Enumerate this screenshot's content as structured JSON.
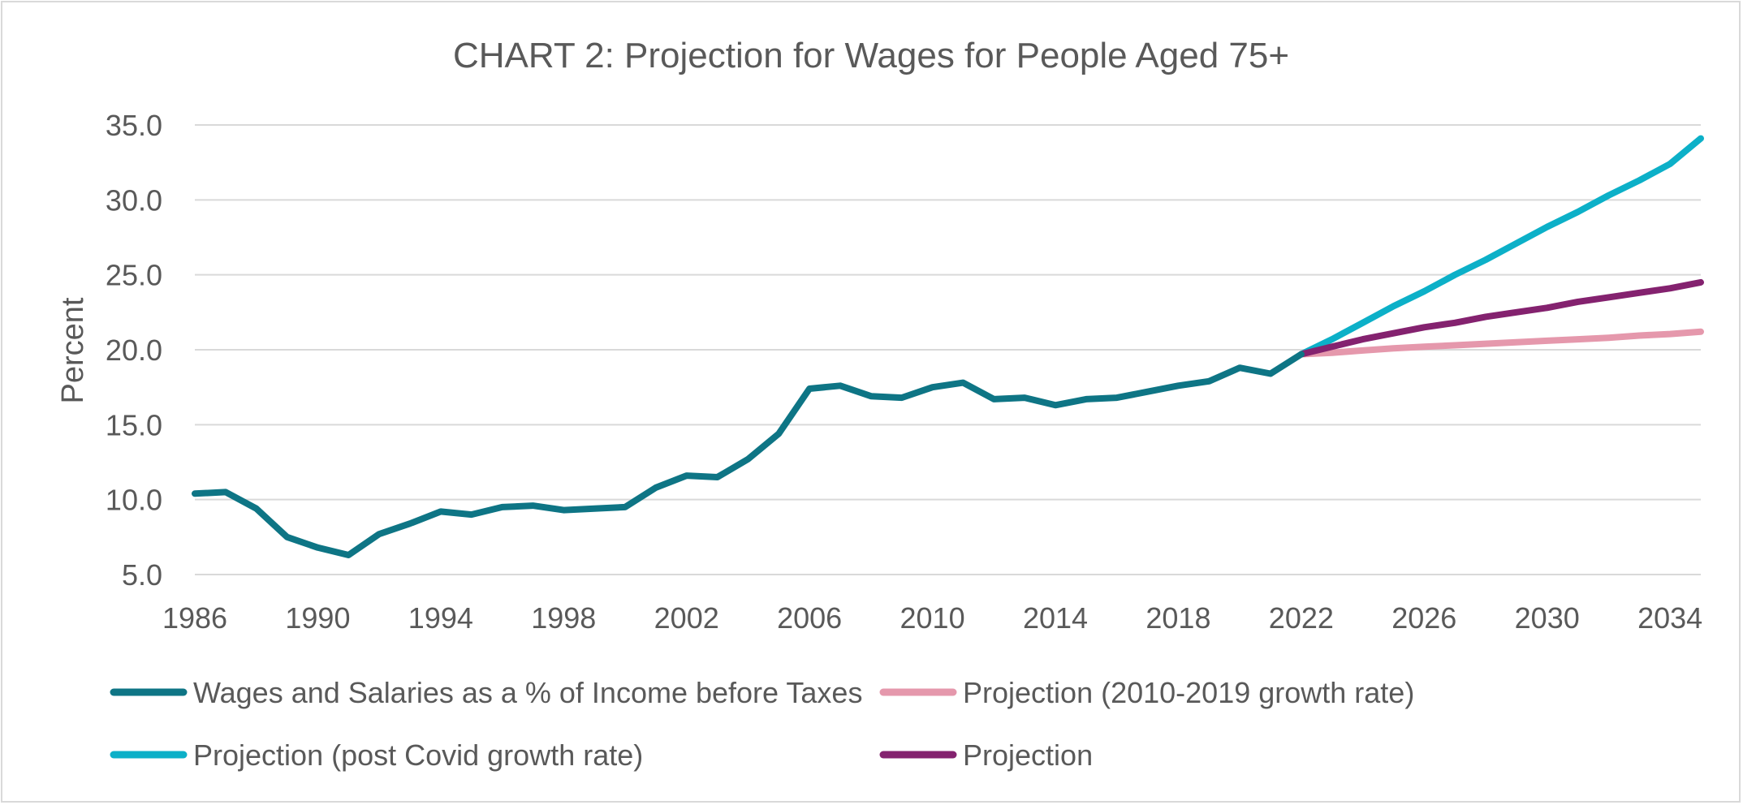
{
  "chart_data": {
    "type": "line",
    "title": "CHART 2: Projection for Wages for People Aged 75+",
    "ylabel": "Percent",
    "xlabel": "",
    "ylim": [
      5,
      35
    ],
    "xlim": [
      1986,
      2035
    ],
    "y_ticks": [
      5,
      10,
      15,
      20,
      25,
      30,
      35
    ],
    "y_tick_labels": [
      "5.0",
      "10.0",
      "15.0",
      "20.0",
      "25.0",
      "30.0",
      "35.0"
    ],
    "x_ticks": [
      1986,
      1990,
      1994,
      1998,
      2002,
      2006,
      2010,
      2014,
      2018,
      2022,
      2026,
      2030,
      2034
    ],
    "x_tick_labels": [
      "1986",
      "1990",
      "1994",
      "1998",
      "2002",
      "2006",
      "2010",
      "2014",
      "2018",
      "2022",
      "2026",
      "2030",
      "2034"
    ],
    "grid": true,
    "legend_position": "bottom",
    "series": [
      {
        "name": "Wages and Salaries as a % of Income before Taxes",
        "color": "#0e7585",
        "x": [
          1986,
          1987,
          1988,
          1989,
          1990,
          1991,
          1992,
          1993,
          1994,
          1995,
          1996,
          1997,
          1998,
          1999,
          2000,
          2001,
          2002,
          2003,
          2004,
          2005,
          2006,
          2007,
          2008,
          2009,
          2010,
          2011,
          2012,
          2013,
          2014,
          2015,
          2016,
          2017,
          2018,
          2019,
          2020,
          2021,
          2022
        ],
        "values": [
          10.4,
          10.5,
          9.4,
          7.5,
          6.8,
          6.3,
          7.7,
          8.4,
          9.2,
          9.0,
          9.5,
          9.6,
          9.3,
          9.4,
          9.5,
          10.8,
          11.6,
          11.5,
          12.7,
          14.4,
          17.4,
          17.6,
          16.9,
          16.8,
          17.5,
          17.8,
          16.7,
          16.8,
          16.3,
          16.7,
          16.8,
          17.2,
          17.6,
          17.9,
          18.8,
          18.4,
          19.7
        ]
      },
      {
        "name": "Projection (2010-2019 growth rate)",
        "color": "#e598ac",
        "x": [
          2022,
          2023,
          2024,
          2025,
          2026,
          2027,
          2028,
          2029,
          2030,
          2031,
          2032,
          2033,
          2034,
          2035
        ],
        "values": [
          19.7,
          19.8,
          19.95,
          20.1,
          20.2,
          20.3,
          20.4,
          20.5,
          20.6,
          20.7,
          20.8,
          20.95,
          21.05,
          21.2
        ]
      },
      {
        "name": "Projection (post Covid growth rate)",
        "color": "#0cb0c8",
        "x": [
          2022,
          2023,
          2024,
          2025,
          2026,
          2027,
          2028,
          2029,
          2030,
          2031,
          2032,
          2033,
          2034,
          2035
        ],
        "values": [
          19.7,
          20.7,
          21.8,
          22.9,
          23.9,
          25.0,
          26.0,
          27.1,
          28.2,
          29.2,
          30.3,
          31.3,
          32.4,
          34.1
        ]
      },
      {
        "name": "Projection",
        "color": "#84226f",
        "x": [
          2022,
          2023,
          2024,
          2025,
          2026,
          2027,
          2028,
          2029,
          2030,
          2031,
          2032,
          2033,
          2034,
          2035
        ],
        "values": [
          19.7,
          20.2,
          20.7,
          21.1,
          21.5,
          21.8,
          22.2,
          22.5,
          22.8,
          23.2,
          23.5,
          23.8,
          24.1,
          24.5
        ]
      }
    ],
    "legend_order": [
      0,
      1,
      2,
      3
    ]
  },
  "colors": {
    "text": "#595959",
    "grid": "#d9d9d9",
    "border": "#d9d9d9"
  }
}
